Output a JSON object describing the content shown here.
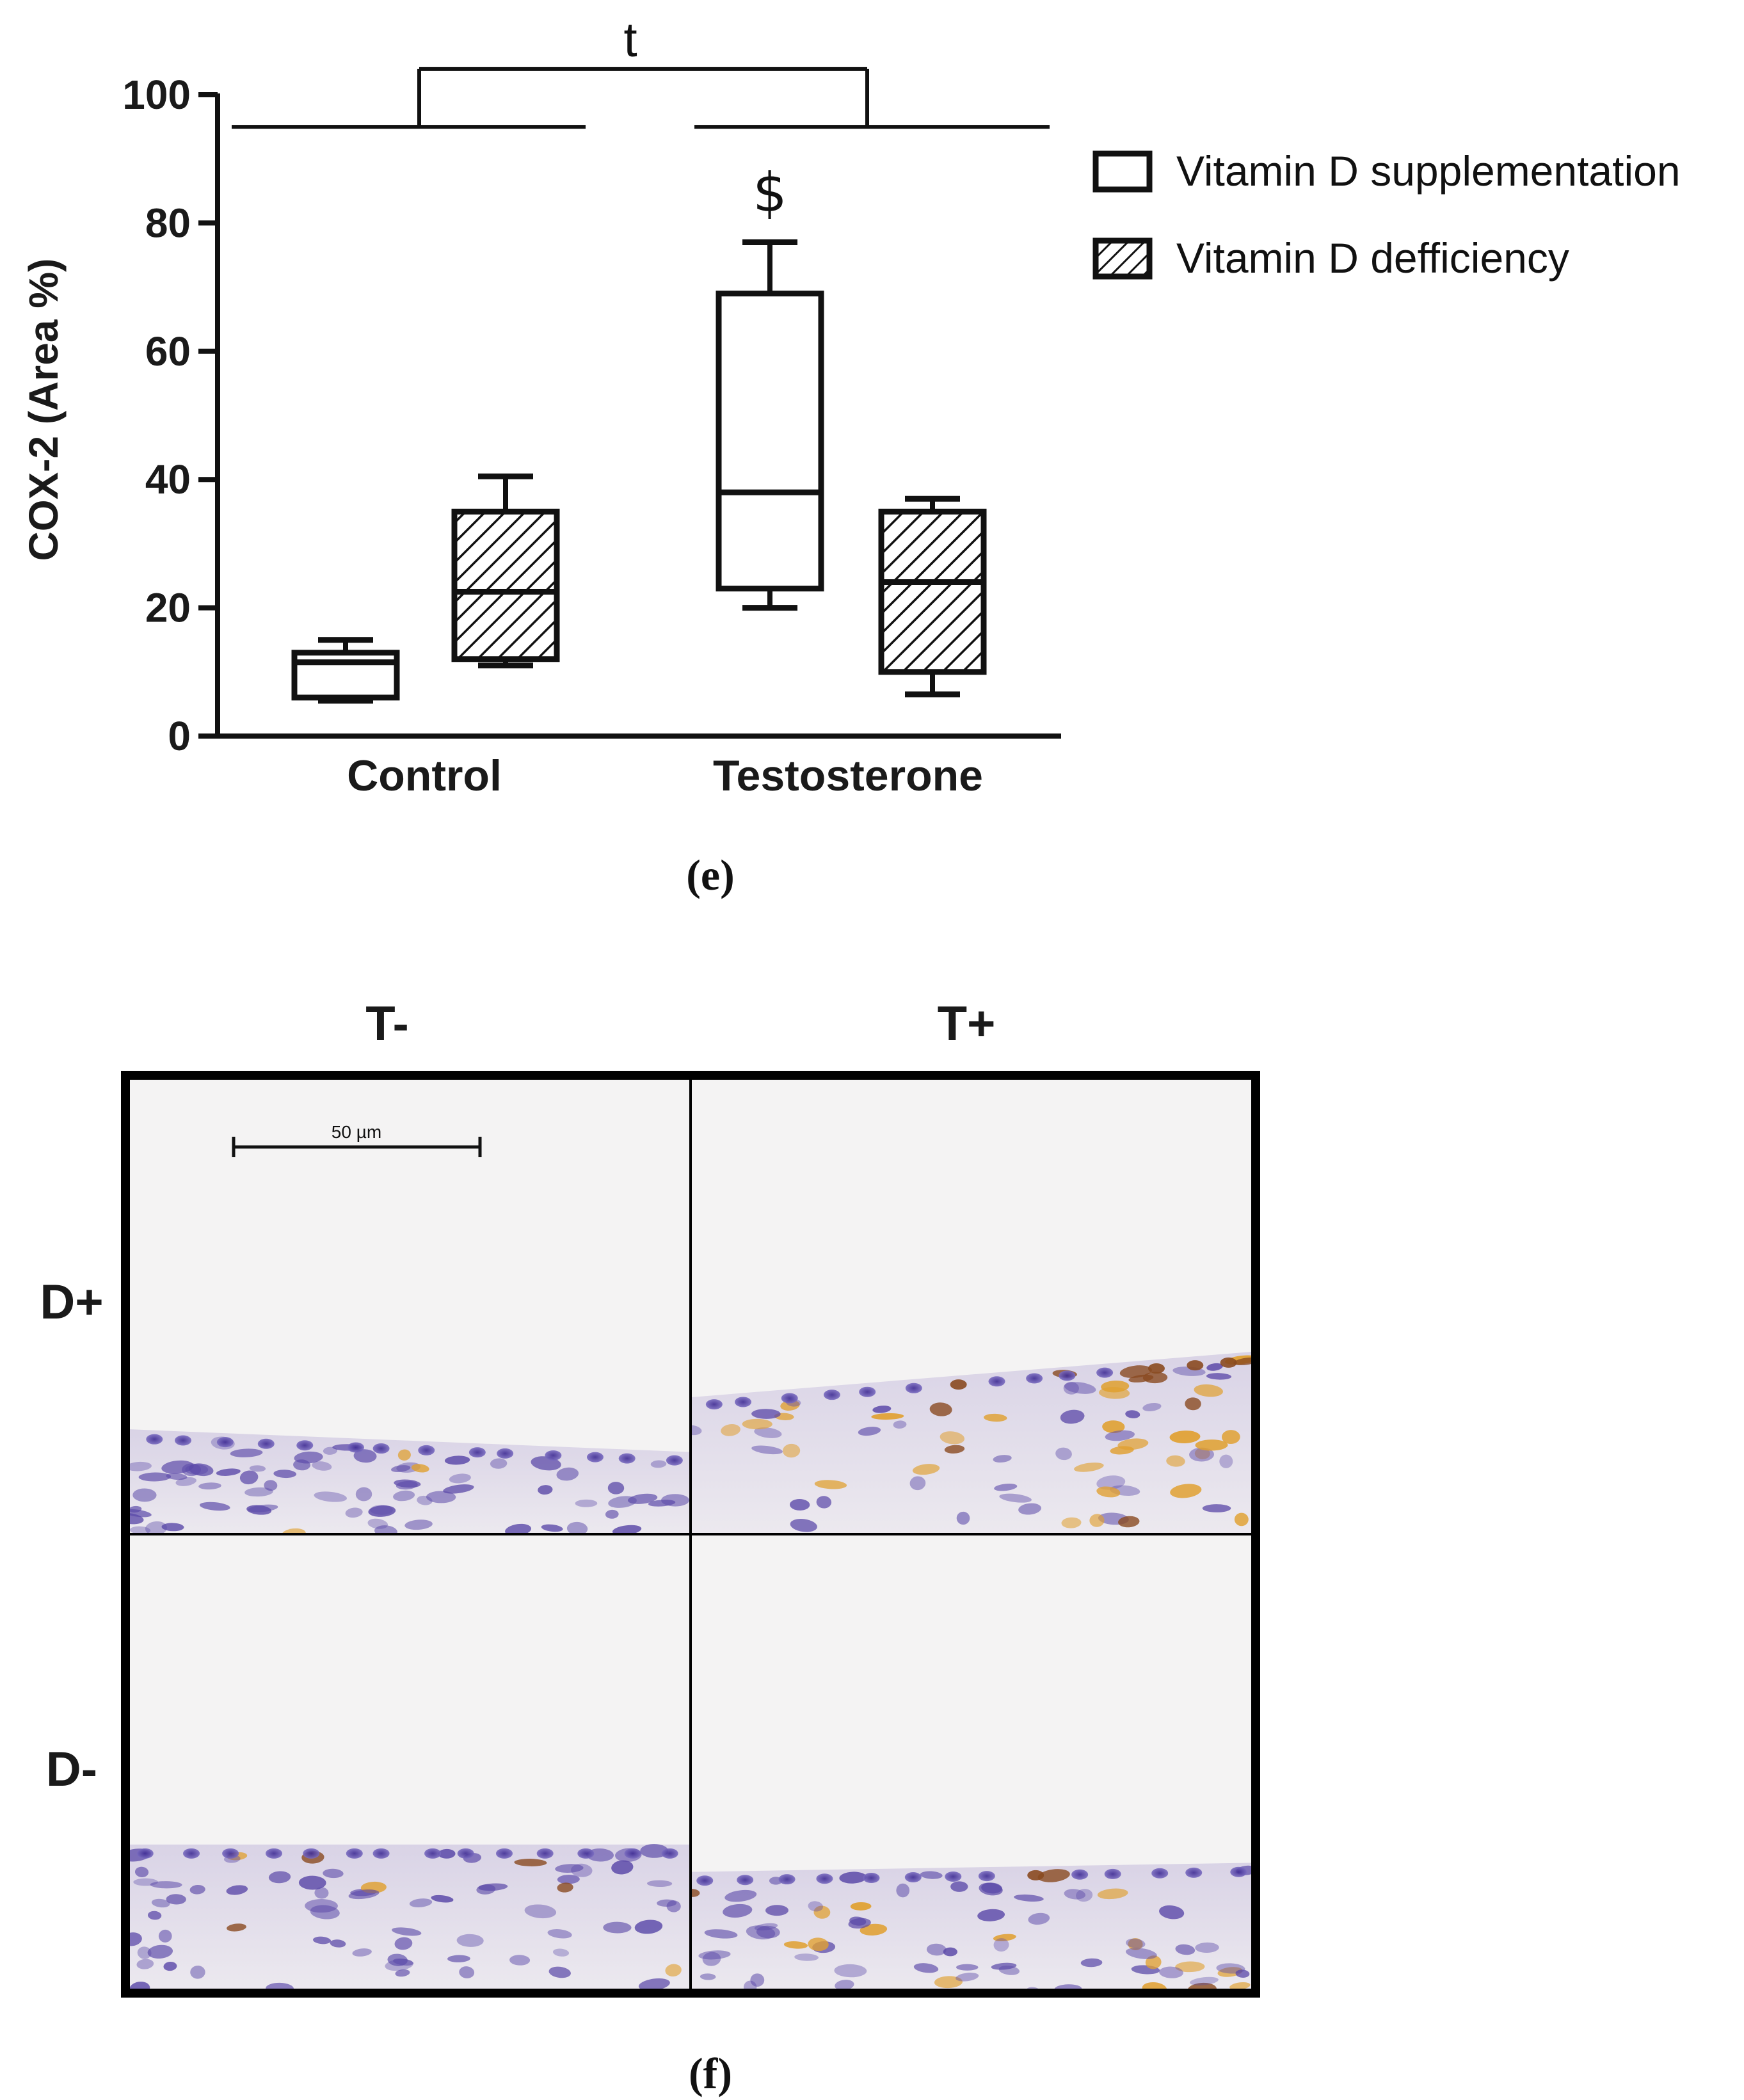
{
  "chart_data": {
    "type": "box",
    "ylabel": "COX-2 (Area %)",
    "ylim": [
      0,
      100
    ],
    "yticks": [
      "0",
      "20",
      "40",
      "60",
      "80",
      "100"
    ],
    "categories": [
      "Control",
      "Testosterone"
    ],
    "series": [
      {
        "name": "Vitamin D supplementation",
        "fill": "none",
        "boxes": [
          {
            "category": "Control",
            "min": 5.5,
            "q1": 6,
            "median": 11.5,
            "q3": 13,
            "max": 15
          },
          {
            "category": "Testosterone",
            "min": 20,
            "q1": 23,
            "median": 38,
            "q3": 69,
            "max": 77
          }
        ]
      },
      {
        "name": "Vitamin D defficiency",
        "fill": "hatch",
        "boxes": [
          {
            "category": "Control",
            "min": 11,
            "q1": 12,
            "median": 22.5,
            "q3": 35,
            "max": 40.5
          },
          {
            "category": "Testosterone",
            "min": 6.5,
            "q1": 10,
            "median": 24,
            "q3": 35,
            "max": 37
          }
        ]
      }
    ],
    "annotations": {
      "bracket_label": "t",
      "significance_mark": "$"
    },
    "legend_placement": "right-top",
    "grid": false
  },
  "panel_e_label": "(e)",
  "micrograph": {
    "column_labels": [
      "T-",
      "T+"
    ],
    "row_labels": [
      "D+",
      "D-"
    ],
    "scale_bar_label": "50 µm",
    "colors": {
      "background": "#f4f3f3",
      "tissue": "#e6e3ea",
      "nuclei": "#5a48a8",
      "stain": "#e0a030",
      "dark_stain": "#8a4a20",
      "border": "#000000"
    }
  },
  "panel_f_label": "(f)"
}
